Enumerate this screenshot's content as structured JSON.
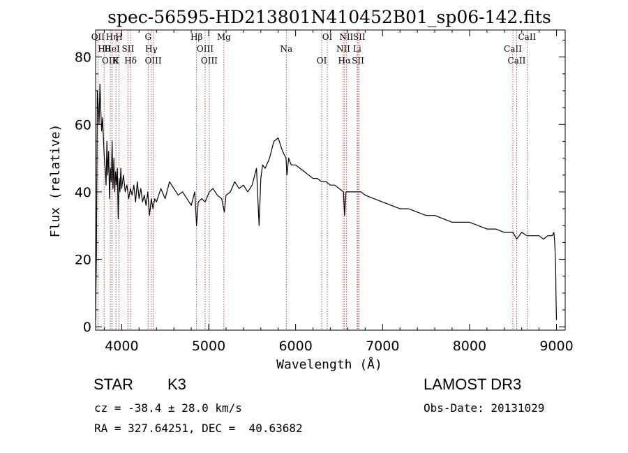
{
  "chart_data": {
    "type": "line",
    "title": "spec-56595-HD213801N410452B01_sp06-142.fits",
    "xlabel": "Wavelength (Å)",
    "ylabel": "Flux (relative)",
    "xlim": [
      3700,
      9100
    ],
    "ylim": [
      -1,
      88
    ],
    "xticks": [
      4000,
      5000,
      6000,
      7000,
      8000,
      9000
    ],
    "yticks": [
      0,
      20,
      40,
      60,
      80
    ],
    "series": [
      {
        "name": "flux",
        "x": [
          3700,
          3710,
          3720,
          3730,
          3740,
          3750,
          3760,
          3770,
          3780,
          3790,
          3800,
          3810,
          3820,
          3830,
          3840,
          3850,
          3860,
          3870,
          3880,
          3890,
          3900,
          3910,
          3920,
          3930,
          3940,
          3950,
          3960,
          3970,
          3980,
          3990,
          4000,
          4020,
          4040,
          4060,
          4080,
          4100,
          4120,
          4140,
          4160,
          4180,
          4200,
          4220,
          4240,
          4260,
          4280,
          4300,
          4320,
          4340,
          4360,
          4380,
          4400,
          4450,
          4500,
          4550,
          4600,
          4650,
          4700,
          4750,
          4800,
          4840,
          4861,
          4880,
          4920,
          4960,
          5007,
          5050,
          5100,
          5150,
          5180,
          5200,
          5250,
          5300,
          5350,
          5400,
          5450,
          5500,
          5550,
          5580,
          5600,
          5620,
          5650,
          5700,
          5750,
          5800,
          5850,
          5890,
          5900,
          5920,
          5950,
          6000,
          6050,
          6100,
          6150,
          6200,
          6250,
          6300,
          6350,
          6400,
          6450,
          6500,
          6550,
          6563,
          6580,
          6600,
          6650,
          6700,
          6750,
          6800,
          6900,
          7000,
          7100,
          7200,
          7300,
          7400,
          7500,
          7600,
          7700,
          7800,
          7900,
          8000,
          8100,
          8200,
          8300,
          8400,
          8500,
          8542,
          8600,
          8662,
          8700,
          8750,
          8800,
          8850,
          8900,
          8950,
          8970,
          8980,
          8990,
          8995,
          9000
        ],
        "values": [
          2,
          22,
          70,
          66,
          60,
          72,
          64,
          58,
          62,
          56,
          50,
          47,
          42,
          55,
          45,
          52,
          38,
          47,
          43,
          55,
          41,
          50,
          40,
          46,
          42,
          47,
          32,
          44,
          40,
          47,
          41,
          45,
          40,
          42,
          38,
          41,
          39,
          42,
          37,
          43,
          38,
          41,
          37,
          39,
          36,
          40,
          33,
          38,
          35,
          38,
          37,
          41,
          38,
          43,
          41,
          39,
          40,
          38,
          36,
          40,
          30,
          37,
          38,
          37,
          40,
          41,
          39,
          38,
          34,
          39,
          40,
          43,
          41,
          42,
          40,
          42,
          47,
          30,
          44,
          48,
          47,
          50,
          55,
          56,
          52,
          50,
          45,
          50,
          48,
          48,
          47,
          46,
          45,
          44,
          44,
          43,
          43,
          42,
          42,
          41,
          40,
          33,
          40,
          40,
          40,
          40,
          40,
          39,
          38,
          37,
          36,
          35,
          35,
          34,
          33,
          33,
          32,
          31,
          31,
          31,
          30,
          29,
          29,
          28,
          28,
          26,
          28,
          27,
          27,
          27,
          27,
          26,
          27,
          27,
          28,
          25,
          18,
          8,
          2
        ]
      }
    ],
    "lines": [
      {
        "name": "OII",
        "wave": 3727
      },
      {
        "name": "Hθ",
        "wave": 3798
      },
      {
        "name": "OIII",
        "wave": 3869
      },
      {
        "name": "Hη",
        "wave": 3889
      },
      {
        "name": "HeI",
        "wave": 3889
      },
      {
        "name": "K",
        "wave": 3934
      },
      {
        "name": "H",
        "wave": 3969
      },
      {
        "name": "SII",
        "wave": 4072
      },
      {
        "name": "Hδ",
        "wave": 4102
      },
      {
        "name": "G",
        "wave": 4304
      },
      {
        "name": "Hγ",
        "wave": 4340
      },
      {
        "name": "OIII",
        "wave": 4363
      },
      {
        "name": "Hβ",
        "wave": 4861
      },
      {
        "name": "OIII",
        "wave": 4959
      },
      {
        "name": "OIII",
        "wave": 5007
      },
      {
        "name": "Mg",
        "wave": 5175
      },
      {
        "name": "Na",
        "wave": 5893
      },
      {
        "name": "OI",
        "wave": 6300
      },
      {
        "name": "OI",
        "wave": 6364
      },
      {
        "name": "NII",
        "wave": 6548
      },
      {
        "name": "Hα",
        "wave": 6563
      },
      {
        "name": "NII",
        "wave": 6583
      },
      {
        "name": "Li",
        "wave": 6708
      },
      {
        "name": "SII",
        "wave": 6717
      },
      {
        "name": "SII",
        "wave": 6731
      },
      {
        "name": "CaII",
        "wave": 8498
      },
      {
        "name": "CaII",
        "wave": 8542
      },
      {
        "name": "CaII",
        "wave": 8662
      }
    ]
  },
  "info": {
    "object_type": "STAR",
    "subclass": "K3",
    "survey": "LAMOST DR3",
    "cz": "cz = -38.4 ± 28.0 km/s",
    "obs_date": "Obs-Date: 20131029",
    "coords": "RA = 327.64251, DEC =  40.63682"
  }
}
